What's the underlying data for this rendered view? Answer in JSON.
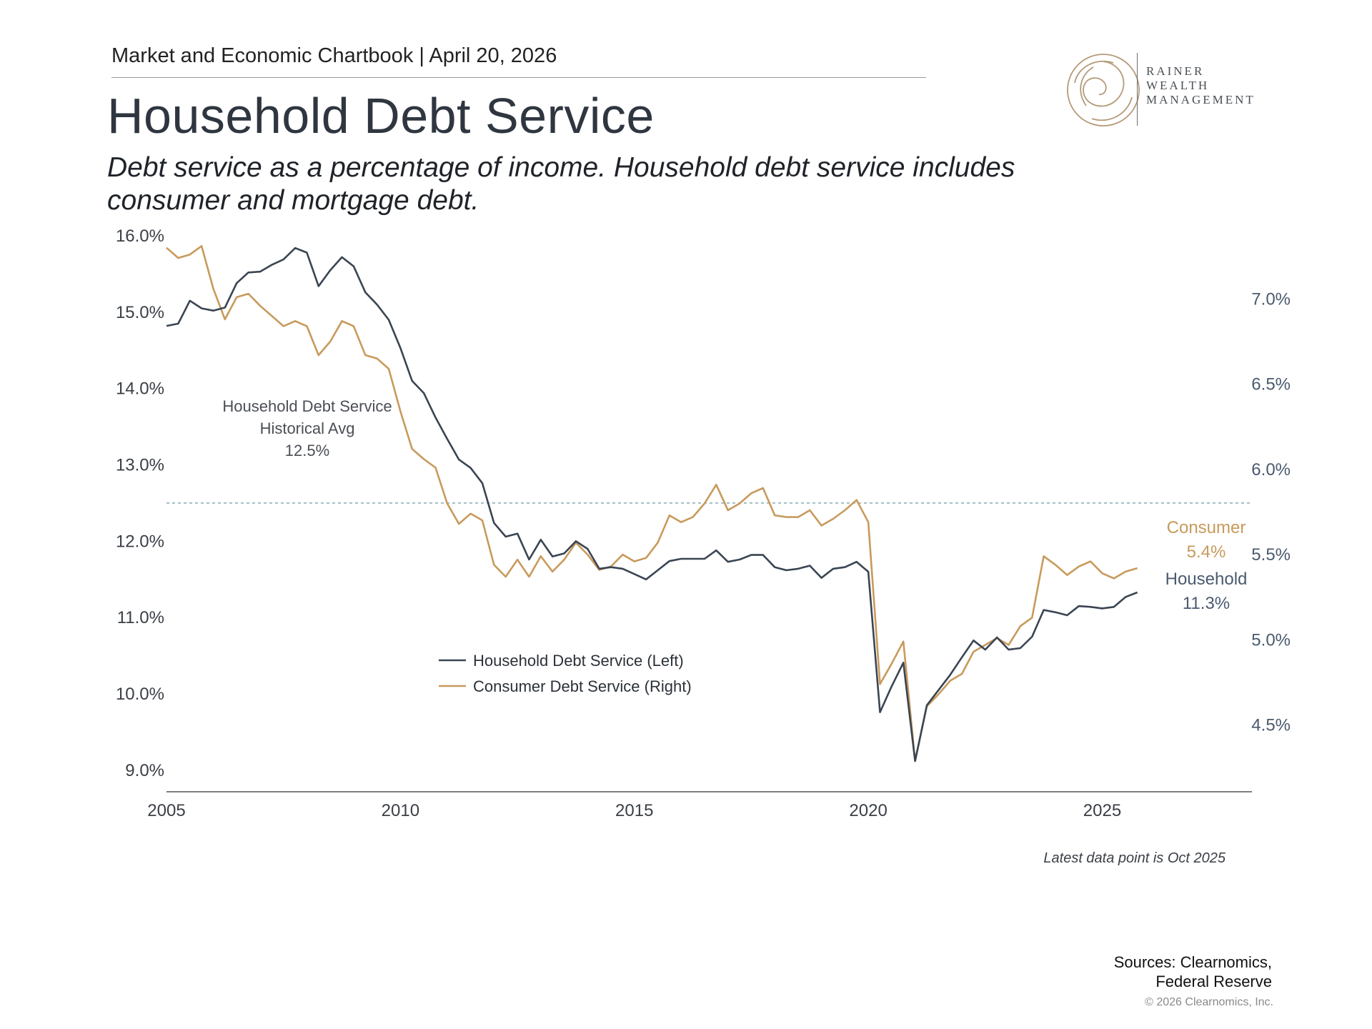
{
  "header": {
    "publication": "Market and Economic Chartbook | April 20, 2026"
  },
  "title": "Household Debt Service",
  "subtitle": "Debt service as a percentage of income. Household debt service includes consumer and mortgage debt.",
  "logo": {
    "lines": [
      "RAINER",
      "WEALTH",
      "MANAGEMENT"
    ],
    "icon": "swirl-circle-logo-icon",
    "color": "#b49a78"
  },
  "footnote": "Latest data point is Oct 2025",
  "sources": [
    "Sources: Clearnomics,",
    "Federal Reserve"
  ],
  "copyright": "© 2026 Clearnomics, Inc.",
  "chart_data": {
    "type": "line",
    "x_ticks": [
      "2005",
      "2010",
      "2015",
      "2020",
      "2025"
    ],
    "xlim": [
      2005,
      2028.2
    ],
    "left_axis": {
      "ylim": [
        8.7,
        16.0
      ],
      "ticks": [
        9,
        10,
        11,
        12,
        13,
        14,
        15,
        16
      ],
      "tick_labels": [
        "9.0%",
        "10.0%",
        "11.0%",
        "12.0%",
        "13.0%",
        "14.0%",
        "15.0%",
        "16.0%"
      ]
    },
    "right_axis": {
      "ylim": [
        4.1,
        7.37
      ],
      "ticks": [
        4.5,
        5.0,
        5.5,
        6.0,
        6.5,
        7.0
      ],
      "tick_labels": [
        "4.5%",
        "5.0%",
        "5.5%",
        "6.0%",
        "6.5%",
        "7.0%"
      ]
    },
    "colors": {
      "household": "#3a4553",
      "consumer": "#c89a5c",
      "avg_line": "#8fb0b8",
      "axis": "#555555",
      "tick_text": "#3a3f46",
      "right_tick_text": "#4a5a6e"
    },
    "series": [
      {
        "name": "Household Debt Service (Left)",
        "axis": "left",
        "x": [
          2005.0,
          2005.25,
          2005.5,
          2005.75,
          2006.0,
          2006.25,
          2006.5,
          2006.75,
          2007.0,
          2007.25,
          2007.5,
          2007.75,
          2008.0,
          2008.25,
          2008.5,
          2008.75,
          2009.0,
          2009.25,
          2009.5,
          2009.75,
          2010.0,
          2010.25,
          2010.5,
          2010.75,
          2011.0,
          2011.25,
          2011.5,
          2011.75,
          2012.0,
          2012.25,
          2012.5,
          2012.75,
          2013.0,
          2013.25,
          2013.5,
          2013.75,
          2014.0,
          2014.25,
          2014.5,
          2014.75,
          2015.0,
          2015.25,
          2015.5,
          2015.75,
          2016.0,
          2016.25,
          2016.5,
          2016.75,
          2017.0,
          2017.25,
          2017.5,
          2017.75,
          2018.0,
          2018.25,
          2018.5,
          2018.75,
          2019.0,
          2019.25,
          2019.5,
          2019.75,
          2020.0,
          2020.25,
          2020.5,
          2020.75,
          2021.0,
          2021.25,
          2021.5,
          2021.75,
          2022.0,
          2022.25,
          2022.5,
          2022.75,
          2023.0,
          2023.25,
          2023.5,
          2023.75,
          2024.0,
          2024.25,
          2024.5,
          2024.75,
          2025.0,
          2025.25,
          2025.5,
          2025.75
        ],
        "values": [
          14.82,
          14.85,
          15.15,
          15.05,
          15.02,
          15.06,
          15.38,
          15.52,
          15.53,
          15.62,
          15.69,
          15.84,
          15.78,
          15.34,
          15.55,
          15.72,
          15.6,
          15.26,
          15.1,
          14.9,
          14.53,
          14.1,
          13.94,
          13.62,
          13.34,
          13.07,
          12.96,
          12.76,
          12.24,
          12.06,
          12.1,
          11.76,
          12.02,
          11.8,
          11.84,
          12.0,
          11.9,
          11.64,
          11.66,
          11.64,
          11.57,
          11.5,
          11.62,
          11.74,
          11.77,
          11.77,
          11.77,
          11.88,
          11.73,
          11.76,
          11.82,
          11.82,
          11.66,
          11.62,
          11.64,
          11.68,
          11.52,
          11.64,
          11.66,
          11.73,
          11.6,
          9.76,
          10.1,
          10.41,
          9.12,
          9.85,
          10.05,
          10.25,
          10.48,
          10.7,
          10.58,
          10.74,
          10.58,
          10.6,
          10.75,
          11.1,
          11.07,
          11.03,
          11.15,
          11.14,
          11.12,
          11.14,
          11.27,
          11.33
        ]
      },
      {
        "name": "Consumer Debt Service (Right)",
        "axis": "right",
        "x": [
          2005.0,
          2005.25,
          2005.5,
          2005.75,
          2006.0,
          2006.25,
          2006.5,
          2006.75,
          2007.0,
          2007.25,
          2007.5,
          2007.75,
          2008.0,
          2008.25,
          2008.5,
          2008.75,
          2009.0,
          2009.25,
          2009.5,
          2009.75,
          2010.0,
          2010.25,
          2010.5,
          2010.75,
          2011.0,
          2011.25,
          2011.5,
          2011.75,
          2012.0,
          2012.25,
          2012.5,
          2012.75,
          2013.0,
          2013.25,
          2013.5,
          2013.75,
          2014.0,
          2014.25,
          2014.5,
          2014.75,
          2015.0,
          2015.25,
          2015.5,
          2015.75,
          2016.0,
          2016.25,
          2016.5,
          2016.75,
          2017.0,
          2017.25,
          2017.5,
          2017.75,
          2018.0,
          2018.25,
          2018.5,
          2018.75,
          2019.0,
          2019.25,
          2019.5,
          2019.75,
          2020.0,
          2020.25,
          2020.5,
          2020.75,
          2021.0,
          2021.25,
          2021.5,
          2021.75,
          2022.0,
          2022.25,
          2022.5,
          2022.75,
          2023.0,
          2023.25,
          2023.5,
          2023.75,
          2024.0,
          2024.25,
          2024.5,
          2024.75,
          2025.0,
          2025.25,
          2025.5,
          2025.75
        ],
        "values": [
          7.3,
          7.24,
          7.26,
          7.31,
          7.06,
          6.88,
          7.01,
          7.03,
          6.96,
          6.9,
          6.84,
          6.87,
          6.84,
          6.67,
          6.75,
          6.87,
          6.84,
          6.67,
          6.65,
          6.59,
          6.34,
          6.12,
          6.06,
          6.01,
          5.8,
          5.68,
          5.74,
          5.7,
          5.44,
          5.37,
          5.47,
          5.37,
          5.49,
          5.4,
          5.47,
          5.57,
          5.5,
          5.41,
          5.43,
          5.5,
          5.46,
          5.48,
          5.57,
          5.73,
          5.69,
          5.72,
          5.8,
          5.91,
          5.76,
          5.8,
          5.86,
          5.89,
          5.73,
          5.72,
          5.72,
          5.76,
          5.67,
          5.71,
          5.76,
          5.82,
          5.69,
          4.74,
          4.86,
          4.99,
          4.29,
          4.61,
          4.68,
          4.76,
          4.8,
          4.93,
          4.97,
          5.01,
          4.97,
          5.08,
          5.13,
          5.49,
          5.44,
          5.38,
          5.43,
          5.46,
          5.39,
          5.36,
          5.4,
          5.42
        ]
      }
    ],
    "avg_line": {
      "axis": "left",
      "value": 12.5,
      "label": [
        "Household Debt Service",
        "Historical Avg",
        "12.5%"
      ]
    },
    "end_labels": {
      "consumer": [
        "Consumer",
        "5.4%"
      ],
      "household": [
        "Household",
        "11.3%"
      ]
    },
    "legend": {
      "placement": "center-bottom",
      "entries": [
        "Household Debt Service (Left)",
        "Consumer Debt Service (Right)"
      ]
    }
  }
}
